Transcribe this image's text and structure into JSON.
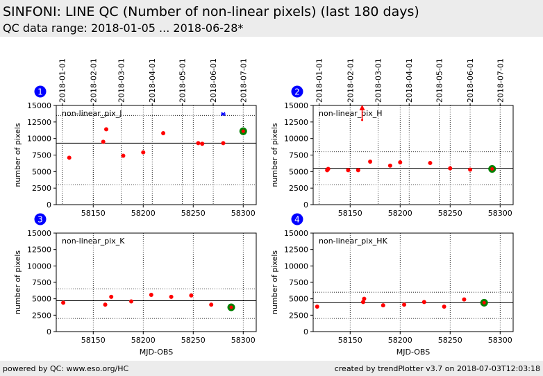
{
  "header": {
    "title": "SINFONI: LINE QC (Number of non-linear pixels) (last 180 days)",
    "subtitle": "QC data range: 2018-01-05 ... 2018-06-28*"
  },
  "footer": {
    "left": "powered by QC: www.eso.org/HC",
    "right": "created by trendPlotter v3.7 on 2018-07-03T12:03:18"
  },
  "colors": {
    "data": "#ff0000",
    "last": "#008000",
    "outlier": "#0000ff",
    "badge": "#0000ff"
  },
  "chart_data": [
    {
      "type": "scatter",
      "badge": "1",
      "label": "non-linear_pix_J",
      "xlabel": "",
      "ylabel": "number of pixels",
      "xlim": [
        58113,
        58313
      ],
      "ylim": [
        0,
        15000
      ],
      "xticks": [
        58150,
        58200,
        58250,
        58300
      ],
      "yticks": [
        0,
        2500,
        5000,
        7500,
        10000,
        12500,
        15000
      ],
      "date_ticks": [
        {
          "mjd": 58119,
          "label": "2018-01-01"
        },
        {
          "mjd": 58150,
          "label": "2018-02-01"
        },
        {
          "mjd": 58178,
          "label": "2018-03-01"
        },
        {
          "mjd": 58209,
          "label": "2018-04-01"
        },
        {
          "mjd": 58239,
          "label": "2018-05-01"
        },
        {
          "mjd": 58270,
          "label": "2018-06-01"
        },
        {
          "mjd": 58300,
          "label": "2018-07-01"
        }
      ],
      "ref_line": 9300,
      "thresholds": [
        3000,
        13500
      ],
      "points": [
        {
          "x": 58126,
          "y": 7100
        },
        {
          "x": 58160,
          "y": 9500
        },
        {
          "x": 58163,
          "y": 11400
        },
        {
          "x": 58180,
          "y": 7400
        },
        {
          "x": 58200,
          "y": 7900
        },
        {
          "x": 58220,
          "y": 10800
        },
        {
          "x": 58255,
          "y": 9300
        },
        {
          "x": 58259,
          "y": 9200
        },
        {
          "x": 58280,
          "y": 9300
        }
      ],
      "last_point": {
        "x": 58300,
        "y": 11100
      },
      "outliers": [
        {
          "x": 58280,
          "y": 13700
        }
      ],
      "arrow": null
    },
    {
      "type": "scatter",
      "badge": "2",
      "label": "non-linear_pix_H",
      "xlabel": "",
      "ylabel": "number of pixels",
      "xlim": [
        58113,
        58313
      ],
      "ylim": [
        0,
        15000
      ],
      "xticks": [
        58150,
        58200,
        58250,
        58300
      ],
      "yticks": [
        0,
        2500,
        5000,
        7500,
        10000,
        12500,
        15000
      ],
      "date_ticks": [
        {
          "mjd": 58119,
          "label": "2018-01-01"
        },
        {
          "mjd": 58150,
          "label": "2018-02-01"
        },
        {
          "mjd": 58178,
          "label": "2018-03-01"
        },
        {
          "mjd": 58209,
          "label": "2018-04-01"
        },
        {
          "mjd": 58239,
          "label": "2018-05-01"
        },
        {
          "mjd": 58270,
          "label": "2018-06-01"
        },
        {
          "mjd": 58300,
          "label": "2018-07-01"
        }
      ],
      "ref_line": 5500,
      "thresholds": [
        3000,
        8000
      ],
      "points": [
        {
          "x": 58127,
          "y": 5200
        },
        {
          "x": 58128,
          "y": 5400
        },
        {
          "x": 58148,
          "y": 5200
        },
        {
          "x": 58158,
          "y": 5200
        },
        {
          "x": 58170,
          "y": 6500
        },
        {
          "x": 58190,
          "y": 5900
        },
        {
          "x": 58200,
          "y": 6400
        },
        {
          "x": 58230,
          "y": 6300
        },
        {
          "x": 58250,
          "y": 5500
        },
        {
          "x": 58270,
          "y": 5300
        }
      ],
      "last_point": {
        "x": 58292,
        "y": 5400
      },
      "outliers": [],
      "arrow": {
        "x": 58162,
        "y_from": 12800,
        "y_to": 15000
      }
    },
    {
      "type": "scatter",
      "badge": "3",
      "label": "non-linear_pix_K",
      "xlabel": "MJD-OBS",
      "ylabel": "number of pixels",
      "xlim": [
        58113,
        58313
      ],
      "ylim": [
        0,
        15000
      ],
      "xticks": [
        58150,
        58200,
        58250,
        58300
      ],
      "yticks": [
        0,
        2500,
        5000,
        7500,
        10000,
        12500,
        15000
      ],
      "date_ticks": [],
      "ref_line": 4700,
      "thresholds": [
        2000,
        6500
      ],
      "points": [
        {
          "x": 58120,
          "y": 4400
        },
        {
          "x": 58162,
          "y": 4100
        },
        {
          "x": 58168,
          "y": 5300
        },
        {
          "x": 58188,
          "y": 4600
        },
        {
          "x": 58208,
          "y": 5600
        },
        {
          "x": 58228,
          "y": 5300
        },
        {
          "x": 58248,
          "y": 5500
        },
        {
          "x": 58268,
          "y": 4100
        }
      ],
      "last_point": {
        "x": 58288,
        "y": 3700
      },
      "outliers": [],
      "arrow": null
    },
    {
      "type": "scatter",
      "badge": "4",
      "label": "non-linear_pix_HK",
      "xlabel": "MJD-OBS",
      "ylabel": "number of pixels",
      "xlim": [
        58113,
        58313
      ],
      "ylim": [
        0,
        15000
      ],
      "xticks": [
        58150,
        58200,
        58250,
        58300
      ],
      "yticks": [
        0,
        2500,
        5000,
        7500,
        10000,
        12500,
        15000
      ],
      "date_ticks": [],
      "ref_line": 4400,
      "thresholds": [
        2000,
        6000
      ],
      "points": [
        {
          "x": 58117,
          "y": 3800
        },
        {
          "x": 58163,
          "y": 4500
        },
        {
          "x": 58164,
          "y": 5000
        },
        {
          "x": 58183,
          "y": 4000
        },
        {
          "x": 58204,
          "y": 4100
        },
        {
          "x": 58224,
          "y": 4500
        },
        {
          "x": 58244,
          "y": 3800
        },
        {
          "x": 58264,
          "y": 4900
        }
      ],
      "last_point": {
        "x": 58284,
        "y": 4400
      },
      "outliers": [],
      "arrow": null
    }
  ]
}
